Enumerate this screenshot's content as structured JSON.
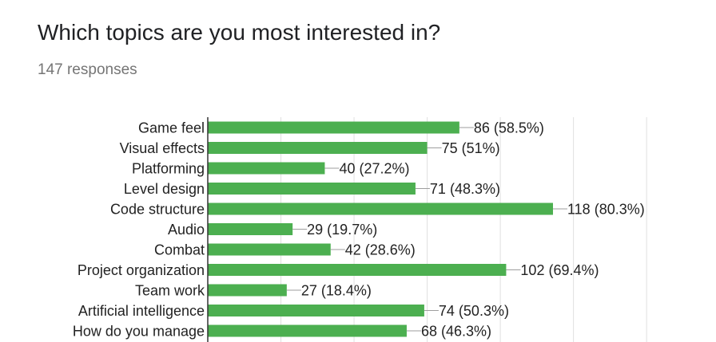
{
  "header": {
    "title": "Which topics are you most interested in?",
    "responses": "147 responses"
  },
  "colors": {
    "bar": "#4caf50",
    "grid": "#e0e0e0",
    "axis": "#333333",
    "text": "#222222"
  },
  "chart_data": {
    "type": "bar",
    "orientation": "horizontal",
    "categories": [
      "Game feel",
      "Visual effects",
      "Platforming",
      "Level design",
      "Code structure",
      "Audio",
      "Combat",
      "Project organization",
      "Team work",
      "Artificial intelligence",
      "How do you manage"
    ],
    "values": [
      86,
      75,
      40,
      71,
      118,
      29,
      42,
      102,
      27,
      74,
      68
    ],
    "data_labels": [
      "86 (58.5%)",
      "75 (51%)",
      "40 (27.2%)",
      "71 (48.3%)",
      "118 (80.3%)",
      "29 (19.7%)",
      "42 (28.6%)",
      "102 (69.4%)",
      "27 (18.4%)",
      "74 (50.3%)",
      "68 (46.3%)"
    ],
    "xlim": [
      0,
      150
    ],
    "grid": true,
    "legend": "none"
  }
}
